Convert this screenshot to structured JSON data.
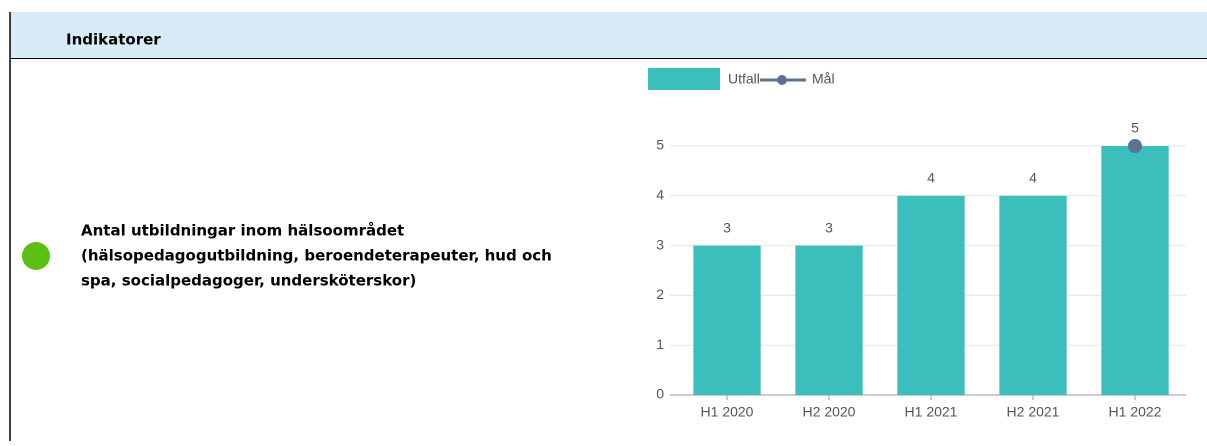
{
  "header": {
    "title": "Indikatorer"
  },
  "indicator": {
    "status_color": "#5cbf14",
    "lines": [
      "Antal utbildningar inom hälsoområdet",
      "(hälsopedagogutbildning, beroendeterapeuter, hud och",
      "spa, socialpedagoger, undersköterskor)"
    ]
  },
  "chart_data": {
    "type": "bar",
    "categories": [
      "H1 2020",
      "H2 2020",
      "H1 2021",
      "H2 2021",
      "H1 2022"
    ],
    "series": [
      {
        "name": "Utfall",
        "color": "#3bbfbc",
        "values": [
          3,
          3,
          4,
          4,
          5
        ]
      },
      {
        "name": "Mål",
        "type": "line",
        "color": "#5d7193",
        "values": [
          null,
          null,
          null,
          null,
          5
        ]
      }
    ],
    "ylim": [
      0,
      5
    ],
    "yticks": [
      0,
      1,
      2,
      3,
      4,
      5
    ],
    "grid": true,
    "legend": "top"
  }
}
